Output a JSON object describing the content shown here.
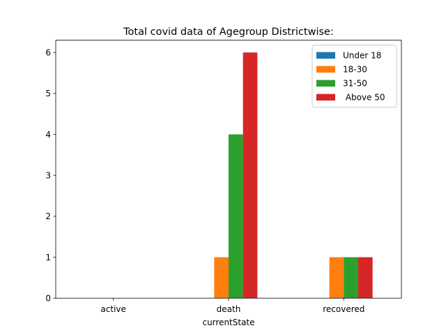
{
  "chart_data": {
    "type": "bar",
    "title": "Total covid data of Agegroup Districtwise:",
    "xlabel": "currentState",
    "ylabel": "",
    "categories": [
      "active",
      "death",
      "recovered"
    ],
    "series": [
      {
        "name": "Under 18",
        "color": "#1f77b4",
        "values": [
          0,
          0,
          0
        ]
      },
      {
        "name": "18-30",
        "color": "#ff7f0e",
        "values": [
          0,
          1,
          1
        ]
      },
      {
        "name": "31-50",
        "color": "#2ca02c",
        "values": [
          0,
          4,
          1
        ]
      },
      {
        "name": " Above 50",
        "color": "#d62728",
        "values": [
          0,
          6,
          1
        ]
      }
    ],
    "ylim": [
      0,
      6.3
    ],
    "yticks": [
      0,
      1,
      2,
      3,
      4,
      5,
      6
    ],
    "grid": false,
    "legend": "top-right"
  }
}
